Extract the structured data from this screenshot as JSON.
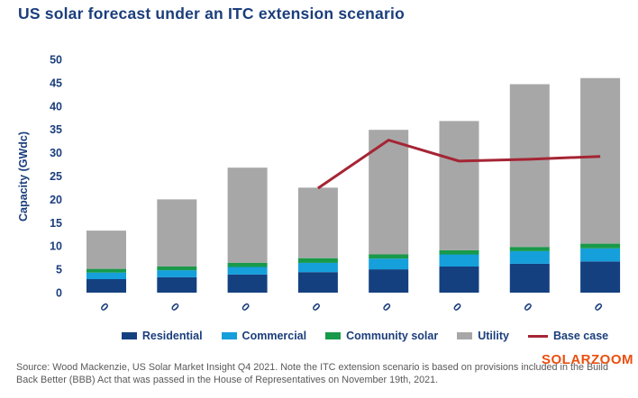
{
  "chart_data": {
    "type": "bar",
    "stacked": true,
    "title": "US solar forecast under an ITC extension scenario",
    "ylabel": "Capacity (GWdc)",
    "xlabel": "",
    "ylim": [
      0,
      50
    ],
    "y_ticks": [
      0,
      5,
      10,
      15,
      20,
      25,
      30,
      35,
      40,
      45,
      50
    ],
    "grid": false,
    "legend_position": "bottom",
    "categories": [
      "0",
      "0",
      "0",
      "0",
      "0",
      "0",
      "0",
      "0"
    ],
    "series": [
      {
        "name": "Residential",
        "color": "#14407f",
        "values": [
          2.9,
          3.3,
          3.9,
          4.4,
          5.0,
          5.6,
          6.2,
          6.7
        ]
      },
      {
        "name": "Commercial",
        "color": "#159fdb",
        "values": [
          1.4,
          1.5,
          1.6,
          2.0,
          2.3,
          2.6,
          2.7,
          2.8
        ]
      },
      {
        "name": "Community solar",
        "color": "#189a4a",
        "values": [
          0.8,
          0.8,
          0.9,
          1.0,
          0.9,
          0.9,
          0.9,
          1.0
        ]
      },
      {
        "name": "Utility",
        "color": "#a7a7a7",
        "values": [
          8.2,
          14.4,
          20.4,
          15.1,
          26.7,
          27.7,
          34.9,
          35.5
        ]
      }
    ],
    "line_series": {
      "name": "Base case",
      "color": "#a52534",
      "start_index": 3,
      "values": [
        22.4,
        32.7,
        28.2,
        28.6,
        29.2
      ]
    },
    "bar_totals": [
      13.3,
      20.0,
      26.8,
      22.5,
      34.9,
      36.8,
      44.7,
      46.0
    ]
  },
  "footer": {
    "source": "Source: Wood Mackenzie, US Solar Market Insight Q4 2021. Note the ITC extension scenario is based on provisions included in the Build Back Better (BBB) Act that was passed in the House of Representatives on November 19th, 2021.",
    "watermark": "SOLARZOOM"
  },
  "colors": {
    "title_text": "#1b3e7c",
    "axis_text": "#1b3e7c",
    "source_text": "#595959",
    "watermark": "#ea4f0e",
    "background": "#ffffff"
  }
}
